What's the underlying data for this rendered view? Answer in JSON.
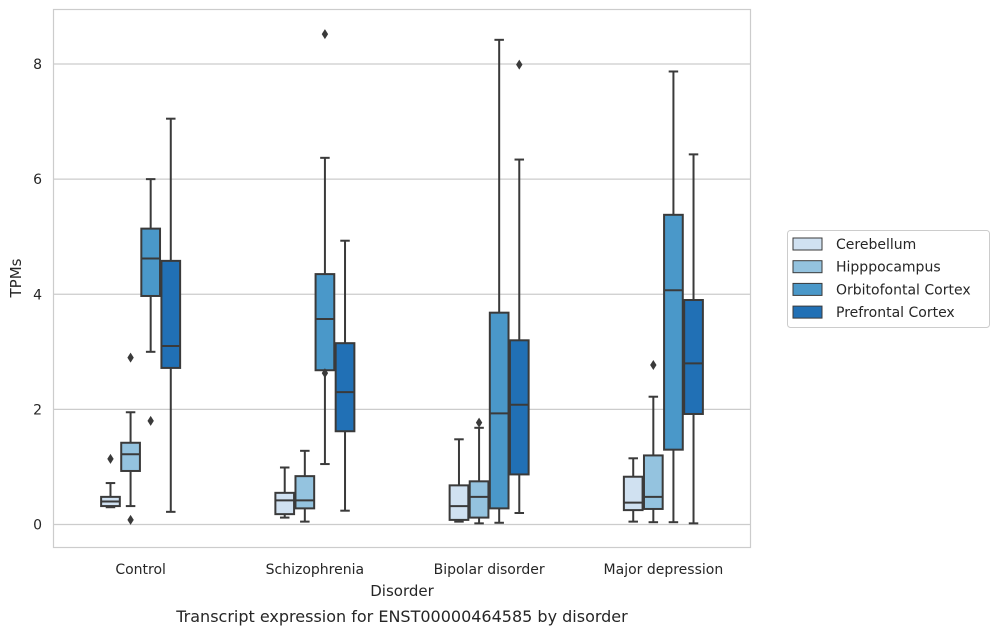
{
  "chart_data": {
    "type": "boxplot",
    "title": "Transcript expression for ENST00000464585 by disorder",
    "xlabel": "Disorder",
    "ylabel": "TPMs",
    "ylim": [
      -0.4,
      8.95
    ],
    "yticks": [
      0,
      2,
      4,
      6,
      8
    ],
    "grid": "horizontal",
    "legend_position": "right",
    "categories": [
      "Control",
      "Schizophrenia",
      "Bipolar disorder",
      "Major depression"
    ],
    "series": [
      {
        "name": "Cerebellum",
        "color": "#d0e1f1",
        "boxes": [
          {
            "whislo": 0.3,
            "q1": 0.32,
            "med": 0.4,
            "q3": 0.48,
            "whishi": 0.72,
            "fliers": [
              1.14
            ]
          },
          {
            "whislo": 0.12,
            "q1": 0.18,
            "med": 0.42,
            "q3": 0.55,
            "whishi": 0.99,
            "fliers": []
          },
          {
            "whislo": 0.05,
            "q1": 0.08,
            "med": 0.32,
            "q3": 0.68,
            "whishi": 1.48,
            "fliers": []
          },
          {
            "whislo": 0.05,
            "q1": 0.25,
            "med": 0.38,
            "q3": 0.83,
            "whishi": 1.15,
            "fliers": []
          }
        ]
      },
      {
        "name": "Hipppocampus",
        "color": "#94c3df",
        "boxes": [
          {
            "whislo": 0.32,
            "q1": 0.93,
            "med": 1.22,
            "q3": 1.42,
            "whishi": 1.95,
            "fliers": [
              0.08,
              2.9
            ]
          },
          {
            "whislo": 0.05,
            "q1": 0.28,
            "med": 0.42,
            "q3": 0.84,
            "whishi": 1.28,
            "fliers": []
          },
          {
            "whislo": 0.02,
            "q1": 0.12,
            "med": 0.48,
            "q3": 0.75,
            "whishi": 1.68,
            "fliers": [
              1.77
            ]
          },
          {
            "whislo": 0.04,
            "q1": 0.27,
            "med": 0.48,
            "q3": 1.2,
            "whishi": 2.22,
            "fliers": [
              2.77
            ]
          }
        ]
      },
      {
        "name": "Orbitofontal Cortex",
        "color": "#4a98c9",
        "boxes": [
          {
            "whislo": 3.0,
            "q1": 3.97,
            "med": 4.62,
            "q3": 5.14,
            "whishi": 6.0,
            "fliers": [
              1.8
            ]
          },
          {
            "whislo": 1.05,
            "q1": 2.68,
            "med": 3.57,
            "q3": 4.35,
            "whishi": 6.37,
            "fliers": [
              2.63,
              8.52
            ]
          },
          {
            "whislo": 0.03,
            "q1": 0.28,
            "med": 1.93,
            "q3": 3.68,
            "whishi": 8.42,
            "fliers": []
          },
          {
            "whislo": 0.04,
            "q1": 1.3,
            "med": 4.07,
            "q3": 5.38,
            "whishi": 7.87,
            "fliers": []
          }
        ]
      },
      {
        "name": "Prefrontal Cortex",
        "color": "#2170b5",
        "boxes": [
          {
            "whislo": 0.22,
            "q1": 2.72,
            "med": 3.1,
            "q3": 4.58,
            "whishi": 7.05,
            "fliers": []
          },
          {
            "whislo": 0.24,
            "q1": 1.62,
            "med": 2.3,
            "q3": 3.15,
            "whishi": 4.93,
            "fliers": []
          },
          {
            "whislo": 0.2,
            "q1": 0.87,
            "med": 2.08,
            "q3": 3.2,
            "whishi": 6.34,
            "fliers": [
              7.99
            ]
          },
          {
            "whislo": 0.02,
            "q1": 1.92,
            "med": 2.8,
            "q3": 3.9,
            "whishi": 6.43,
            "fliers": []
          }
        ]
      }
    ]
  }
}
